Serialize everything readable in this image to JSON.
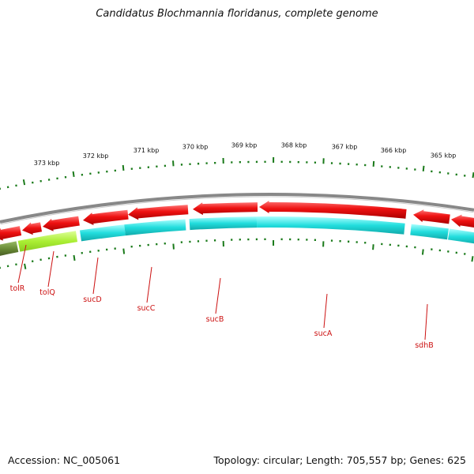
{
  "title": "Candidatus Blochmannia floridanus, complete genome",
  "accession": "Accession: NC_005061",
  "topology": "Topology: circular; Length: 705,557 bp; Genes: 625",
  "kbp_labels": [
    "373 kbp",
    "372 kbp",
    "371 kbp",
    "370 kbp",
    "369 kbp",
    "368 kbp",
    "367 kbp",
    "366 kbp",
    "365 kbp"
  ],
  "genes": [
    "tolR",
    "tolQ",
    "sucD",
    "sucC",
    "sucB",
    "sucA",
    "sdhB"
  ],
  "colors": {
    "forward_arrow": "#ee1111",
    "cog_cyan": "#22dddd",
    "cog_lime": "#aaee33",
    "cog_olive": "#668833",
    "tick": "#1a7a1a",
    "backbone": "#888888"
  }
}
